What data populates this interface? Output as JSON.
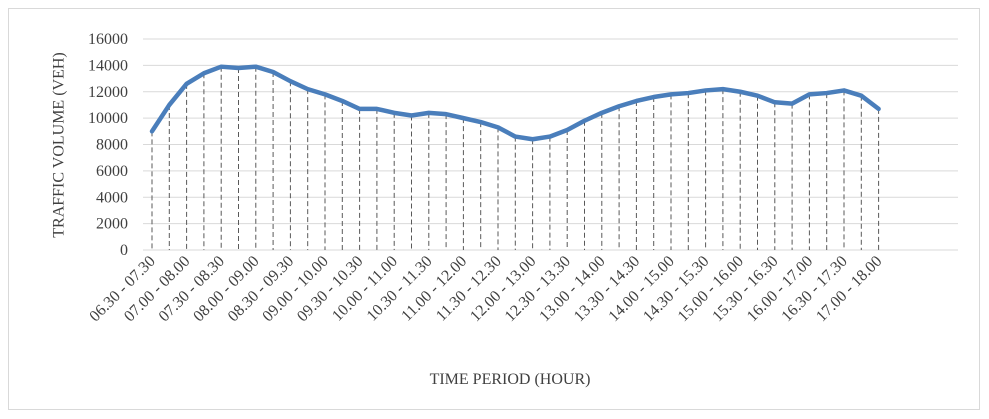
{
  "chart_data": {
    "type": "line",
    "ylabel": "TRAFFIC VOLUME (VEH)",
    "xlabel": "TIME PERIOD (HOUR)",
    "categories": [
      "06.30 - 07.30",
      null,
      "07.00 - 08.00",
      null,
      "07.30 - 08.30",
      null,
      "08.00 - 09.00",
      null,
      "08.30 - 09.30",
      null,
      "09.00 - 10.00",
      null,
      "09.30 - 10.30",
      null,
      "10.00 - 11.00",
      null,
      "10.30 - 11.30",
      null,
      "11.00 - 12.00",
      null,
      "11.30 - 12.30",
      null,
      "12.00 - 13.00",
      null,
      "12.30 - 13.30",
      null,
      "13.00 - 14.00",
      null,
      "13.30 - 14.30",
      null,
      "14.00 - 15.00",
      null,
      "14.30 - 15.30",
      null,
      "15.00 - 16.00",
      null,
      "15.30 - 16.30",
      null,
      "16.00 - 17.00",
      null,
      "16.30 - 17.30",
      null,
      "17.00 - 18.00"
    ],
    "series": [
      {
        "color": "#4a7ebb",
        "values": [
          9000,
          11000,
          12600,
          13400,
          13900,
          13800,
          13900,
          13500,
          12800,
          12200,
          11800,
          11300,
          10700,
          10700,
          10400,
          10200,
          10400,
          10300,
          10000,
          9700,
          9300,
          8600,
          8400,
          8600,
          9100,
          9800,
          10400,
          10900,
          11300,
          11600,
          11800,
          11900,
          12100,
          12200,
          12000,
          11700,
          11200,
          11100,
          11800,
          11900,
          12100,
          11700,
          10700
        ]
      }
    ],
    "ylim": [
      0,
      16000
    ],
    "yticks": [
      0,
      2000,
      4000,
      6000,
      8000,
      10000,
      12000,
      14000,
      16000
    ],
    "grid": true,
    "drop_lines": true
  }
}
